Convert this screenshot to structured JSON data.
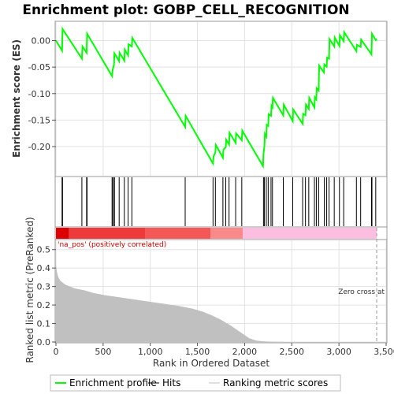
{
  "chart_data": {
    "type": "line",
    "title": "Enrichment plot: GOBP_CELL_RECOGNITION",
    "x_range": [
      0,
      3500
    ],
    "x_ticks": [
      0,
      500,
      1000,
      1500,
      2000,
      2500,
      3000,
      3500
    ],
    "x_tick_labels": [
      "0",
      "500",
      "1,000",
      "1,500",
      "2,000",
      "2,500",
      "3,000",
      "3,500"
    ],
    "xlabel": "Rank in Ordered Dataset",
    "n_genes": 3400,
    "zero_cross_rank": 3400,
    "enrichment": {
      "ylabel": "Enrichment score (ES)",
      "ylim": [
        -0.255,
        0.035
      ],
      "y_ticks": [
        0.0,
        -0.05,
        -0.1,
        -0.15,
        -0.2
      ],
      "y_tick_labels": [
        "0.00",
        "-0.05",
        "-0.10",
        "-0.15",
        "-0.20"
      ],
      "grid": true,
      "series": {
        "name": "Enrichment profile",
        "color": "#00ff00",
        "x": [
          0,
          65,
          70,
          275,
          281,
          325,
          330,
          595,
          600,
          615,
          620,
          670,
          675,
          725,
          730,
          765,
          770,
          805,
          810,
          1370,
          1375,
          1665,
          1670,
          1690,
          1695,
          1770,
          1775,
          1800,
          1805,
          1835,
          1840,
          1905,
          1910,
          1970,
          1975,
          2195,
          2200,
          2210,
          2215,
          2230,
          2235,
          2250,
          2255,
          2280,
          2285,
          2295,
          2300,
          2410,
          2415,
          2510,
          2515,
          2615,
          2620,
          2645,
          2650,
          2680,
          2685,
          2740,
          2745,
          2760,
          2765,
          2785,
          2790,
          2840,
          2845,
          2870,
          2875,
          2895,
          2900,
          2950,
          2955,
          3005,
          3010,
          3050,
          3055,
          3185,
          3190,
          3230,
          3235,
          3345,
          3350,
          3390,
          3395,
          3400
        ],
        "y": [
          0.0,
          -0.019,
          0.022,
          -0.034,
          -0.011,
          -0.023,
          0.013,
          -0.067,
          -0.056,
          -0.046,
          -0.024,
          -0.039,
          -0.023,
          -0.038,
          -0.017,
          -0.028,
          -0.007,
          -0.011,
          0.005,
          -0.163,
          -0.142,
          -0.232,
          -0.219,
          -0.211,
          -0.197,
          -0.221,
          -0.206,
          -0.201,
          -0.187,
          -0.196,
          -0.174,
          -0.193,
          -0.175,
          -0.188,
          -0.17,
          -0.237,
          -0.214,
          -0.199,
          -0.176,
          -0.181,
          -0.159,
          -0.161,
          -0.139,
          -0.142,
          -0.123,
          -0.126,
          -0.108,
          -0.141,
          -0.121,
          -0.152,
          -0.13,
          -0.157,
          -0.138,
          -0.141,
          -0.121,
          -0.129,
          -0.108,
          -0.126,
          -0.107,
          -0.111,
          -0.09,
          -0.094,
          -0.047,
          -0.06,
          -0.045,
          -0.049,
          -0.032,
          -0.034,
          0.003,
          -0.011,
          0.006,
          -0.01,
          0.01,
          -0.001,
          0.016,
          -0.02,
          -0.008,
          -0.012,
          0.002,
          -0.026,
          0.013,
          0.001,
          0.002,
          0.0
        ]
      }
    },
    "hits": {
      "name": "Hits",
      "color": "#000000",
      "ranks": [
        65,
        70,
        275,
        325,
        330,
        595,
        600,
        615,
        620,
        670,
        725,
        765,
        805,
        1370,
        1665,
        1690,
        1770,
        1800,
        1835,
        1905,
        1970,
        2200,
        2210,
        2230,
        2250,
        2280,
        2295,
        2410,
        2510,
        2615,
        2645,
        2680,
        2740,
        2760,
        2785,
        2845,
        2870,
        2895,
        2950,
        3005,
        3050,
        3185,
        3230,
        3345,
        3350,
        3390
      ]
    },
    "ranking_bar": {
      "segments": [
        {
          "from": 0,
          "to": 140,
          "color": "#dd0000"
        },
        {
          "from": 140,
          "to": 950,
          "color": "#ee3a3a"
        },
        {
          "from": 950,
          "to": 1640,
          "color": "#f55656"
        },
        {
          "from": 1640,
          "to": 1980,
          "color": "#fa8a8a"
        },
        {
          "from": 1980,
          "to": 3400,
          "color": "#fbbde0"
        },
        {
          "from": 3400,
          "to": 3500,
          "color": "#ffffff"
        }
      ]
    },
    "ranking_metric": {
      "name": "Ranking metric scores",
      "ylabel": "Ranked list metric (PreRanked)",
      "ylim": [
        0.0,
        0.55
      ],
      "y_ticks": [
        0.0,
        0.1,
        0.2,
        0.3,
        0.4,
        0.5
      ],
      "y_tick_labels": [
        "0.0",
        "0.1",
        "0.2",
        "0.3",
        "0.4",
        "0.5"
      ],
      "fill_color": "#c0c0c0",
      "x": [
        0,
        10,
        25,
        50,
        100,
        200,
        300,
        400,
        500,
        700,
        900,
        1100,
        1300,
        1450,
        1550,
        1650,
        1750,
        1850,
        1950,
        2050,
        2120,
        2180,
        2250,
        2350,
        2500,
        3000,
        3400
      ],
      "y": [
        0.42,
        0.38,
        0.35,
        0.33,
        0.31,
        0.29,
        0.28,
        0.265,
        0.255,
        0.24,
        0.225,
        0.21,
        0.195,
        0.18,
        0.165,
        0.145,
        0.12,
        0.09,
        0.055,
        0.02,
        0.008,
        0.004,
        0.002,
        0.001,
        0.0,
        0.0,
        0.0
      ],
      "top_label": "'na_pos' (positively correlated)",
      "top_label_color": "#cc0000",
      "zero_cross_label": "Zero cross at"
    },
    "legend": {
      "placement": "bottom",
      "items": [
        {
          "label": "Enrichment profile",
          "color": "#00ff00",
          "kind": "line"
        },
        {
          "label": "Hits",
          "color": "#000000",
          "kind": "line"
        },
        {
          "label": "Ranking metric scores",
          "color": "#c0c0c0",
          "kind": "line"
        }
      ]
    }
  }
}
